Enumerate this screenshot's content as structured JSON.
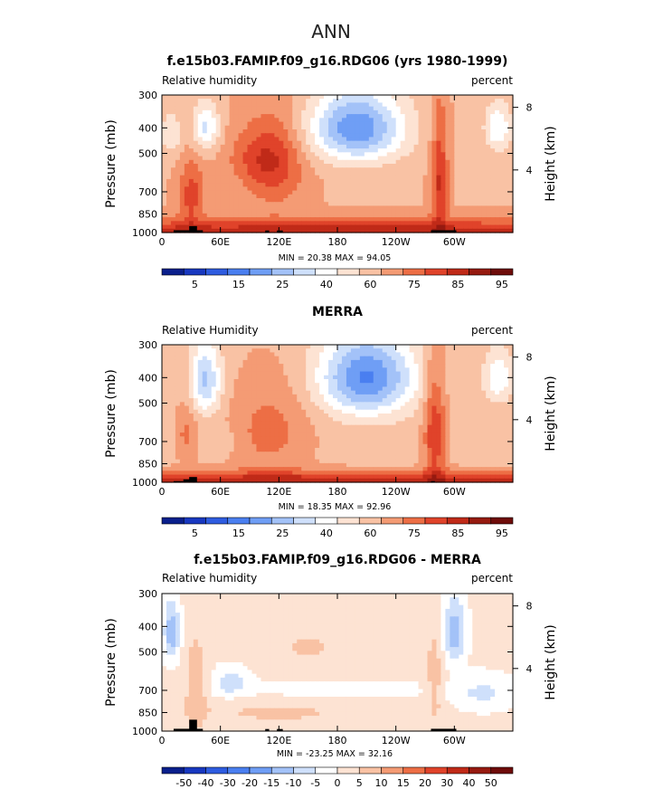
{
  "page": {
    "title": "ANN"
  },
  "colormaps": {
    "abs": {
      "colors": [
        "#0a1f8c",
        "#1838c0",
        "#2e5ce0",
        "#4a7ff0",
        "#6f9ef5",
        "#a3c2f8",
        "#cfe0fb",
        "#ffffff",
        "#fde3d3",
        "#f9c2a4",
        "#f49b74",
        "#ed6e45",
        "#e0432a",
        "#c02a18",
        "#961a10",
        "#6e0c0a"
      ],
      "tick_labels": [
        "5",
        "15",
        "25",
        "40",
        "60",
        "75",
        "85",
        "95"
      ],
      "vmin": 0,
      "vmax": 100
    },
    "diff": {
      "colors": [
        "#0a1f8c",
        "#1838c0",
        "#2e5ce0",
        "#4a7ff0",
        "#6f9ef5",
        "#a3c2f8",
        "#cfe0fb",
        "#ffffff",
        "#fde3d3",
        "#f9c2a4",
        "#f49b74",
        "#ed6e45",
        "#e0432a",
        "#c02a18",
        "#961a10",
        "#6e0c0a"
      ],
      "tick_labels": [
        "-50",
        "-40",
        "-30",
        "-20",
        "-15",
        "-10",
        "-5",
        "0",
        "5",
        "10",
        "15",
        "20",
        "30",
        "40",
        "50"
      ],
      "vmin": -60,
      "vmax": 60
    }
  },
  "chart_data": [
    {
      "type": "heatmap",
      "title": "f.e15b03.FAMIP.f09_g16.RDG06 (yrs 1980-1999)",
      "left_label": "Relative humidity",
      "right_label": "percent",
      "ylabel": "Pressure (mb)",
      "ylabel_right": "Height (km)",
      "xticks": [
        "0",
        "60E",
        "120E",
        "180",
        "120W",
        "60W"
      ],
      "xtick_values": [
        0,
        60,
        120,
        180,
        240,
        300
      ],
      "xlim": [
        0,
        360
      ],
      "yticks": [
        "300",
        "400",
        "500",
        "700",
        "850",
        "1000"
      ],
      "ytick_values": [
        300,
        400,
        500,
        700,
        850,
        1000
      ],
      "ylim": [
        300,
        1000
      ],
      "height_ticks": [
        "8",
        "4"
      ],
      "height_values": [
        8,
        4
      ],
      "min_max": "MIN =   20.38   MAX =   94.05",
      "colormap": "abs",
      "base": 62,
      "features": [
        {
          "lon": 200,
          "p": 400,
          "sx": 34,
          "sp": 90,
          "amp": -36
        },
        {
          "lon": 45,
          "p": 400,
          "sx": 10,
          "sp": 60,
          "amp": -20
        },
        {
          "lon": 345,
          "p": 400,
          "sx": 10,
          "sp": 60,
          "amp": -18
        },
        {
          "lon": 10,
          "p": 420,
          "sx": 9,
          "sp": 60,
          "amp": -10
        },
        {
          "lon": 115,
          "p": 560,
          "sx": 22,
          "sp": 170,
          "amp": 13
        },
        {
          "lon": 30,
          "p": 720,
          "sx": 9,
          "sp": 150,
          "amp": 16
        },
        {
          "lon": 285,
          "p": 650,
          "sx": 6,
          "sp": 250,
          "amp": 20
        },
        {
          "lon": 180,
          "p": 990,
          "sx": 400,
          "sp": 70,
          "amp": 23
        },
        {
          "lon": 100,
          "p": 520,
          "sx": 25,
          "sp": 90,
          "amp": 10
        }
      ],
      "topography": [
        [
          12,
          42,
          980,
          "#000"
        ],
        [
          28,
          36,
          945,
          "#000"
        ],
        [
          276,
          302,
          980,
          "#000"
        ],
        [
          106,
          110,
          982,
          "#000"
        ],
        [
          118,
          124,
          982,
          "#000"
        ]
      ]
    },
    {
      "type": "heatmap",
      "title": "MERRA",
      "left_label": "Relative Humidity",
      "right_label": "percent",
      "ylabel": "Pressure (mb)",
      "ylabel_right": "Height (km)",
      "xticks": [
        "0",
        "60E",
        "120E",
        "180",
        "120W",
        "60W"
      ],
      "xtick_values": [
        0,
        60,
        120,
        180,
        240,
        300
      ],
      "xlim": [
        0,
        360
      ],
      "yticks": [
        "300",
        "400",
        "500",
        "700",
        "850",
        "1000"
      ],
      "ytick_values": [
        300,
        400,
        500,
        700,
        850,
        1000
      ],
      "ylim": [
        300,
        1000
      ],
      "height_ticks": [
        "8",
        "4"
      ],
      "height_values": [
        8,
        4
      ],
      "min_max": "MIN =   18.35   MAX =   92.96",
      "colormap": "abs",
      "base": 60,
      "features": [
        {
          "lon": 210,
          "p": 400,
          "sx": 34,
          "sp": 100,
          "amp": -36
        },
        {
          "lon": 45,
          "p": 410,
          "sx": 11,
          "sp": 90,
          "amp": -24
        },
        {
          "lon": 345,
          "p": 400,
          "sx": 10,
          "sp": 60,
          "amp": -16
        },
        {
          "lon": 110,
          "p": 640,
          "sx": 30,
          "sp": 200,
          "amp": 11
        },
        {
          "lon": 280,
          "p": 650,
          "sx": 8,
          "sp": 250,
          "amp": 20
        },
        {
          "lon": 25,
          "p": 650,
          "sx": 8,
          "sp": 120,
          "amp": 10
        },
        {
          "lon": 180,
          "p": 990,
          "sx": 400,
          "sp": 60,
          "amp": 24
        },
        {
          "lon": 60,
          "p": 700,
          "sx": 10,
          "sp": 60,
          "amp": -6
        }
      ],
      "topography": [
        [
          12,
          22,
          990,
          "#000"
        ],
        [
          22,
          30,
          975,
          "#000"
        ],
        [
          28,
          36,
          955,
          "#000"
        ],
        [
          276,
          280,
          990,
          "#000"
        ]
      ]
    },
    {
      "type": "heatmap",
      "title": "f.e15b03.FAMIP.f09_g16.RDG06 - MERRA",
      "left_label": "Relative humidity",
      "right_label": "percent",
      "ylabel": "Pressure (mb)",
      "ylabel_right": "Height (km)",
      "xticks": [
        "0",
        "60E",
        "120E",
        "180",
        "120W",
        "60W"
      ],
      "xtick_values": [
        0,
        60,
        120,
        180,
        240,
        300
      ],
      "xlim": [
        0,
        360
      ],
      "yticks": [
        "300",
        "400",
        "500",
        "700",
        "850",
        "1000"
      ],
      "ytick_values": [
        300,
        400,
        500,
        700,
        850,
        1000
      ],
      "ylim": [
        300,
        1000
      ],
      "height_ticks": [
        "8",
        "4"
      ],
      "height_values": [
        8,
        4
      ],
      "min_max": "MIN = -23.25   MAX =   32.16",
      "colormap": "diff",
      "base": 2,
      "features": [
        {
          "lon": 10,
          "p": 420,
          "sx": 6,
          "sp": 80,
          "amp": -22
        },
        {
          "lon": 300,
          "p": 420,
          "sx": 8,
          "sp": 90,
          "amp": -22
        },
        {
          "lon": 70,
          "p": 650,
          "sx": 14,
          "sp": 60,
          "amp": -12
        },
        {
          "lon": 330,
          "p": 720,
          "sx": 22,
          "sp": 80,
          "amp": -10
        },
        {
          "lon": 180,
          "p": 700,
          "sx": 90,
          "sp": 50,
          "amp": -5
        },
        {
          "lon": 150,
          "p": 480,
          "sx": 35,
          "sp": 80,
          "amp": 6
        },
        {
          "lon": 35,
          "p": 700,
          "sx": 8,
          "sp": 200,
          "amp": 12
        },
        {
          "lon": 280,
          "p": 650,
          "sx": 7,
          "sp": 200,
          "amp": 10
        },
        {
          "lon": 120,
          "p": 850,
          "sx": 60,
          "sp": 70,
          "amp": 7
        }
      ],
      "topography": [
        [
          12,
          42,
          980,
          "#000"
        ],
        [
          28,
          36,
          905,
          "#000"
        ],
        [
          276,
          302,
          980,
          "#000"
        ],
        [
          106,
          110,
          982,
          "#000"
        ],
        [
          118,
          124,
          982,
          "#000"
        ]
      ]
    }
  ]
}
